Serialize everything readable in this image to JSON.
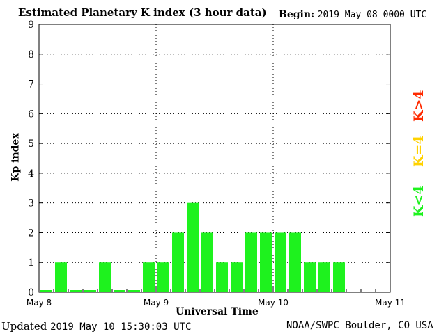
{
  "header": {
    "title": "Estimated Planetary K index (3 hour data)",
    "begin_label": "Begin:",
    "begin_value": "2019 May 08 0000 UTC"
  },
  "footer": {
    "updated_label": "Updated",
    "updated_value": "2019 May 10 15:30:03 UTC",
    "credit": "NOAA/SWPC Boulder, CO USA"
  },
  "legend": {
    "high": {
      "label": "K>4",
      "color": "#ff2a00"
    },
    "equal": {
      "label": "K=4",
      "color": "#ffd200"
    },
    "low": {
      "label": "K<4",
      "color": "#1ef21e"
    }
  },
  "chart_data": {
    "type": "bar",
    "xlabel": "Universal Time",
    "ylabel": "Kp index",
    "ylim": [
      0,
      9
    ],
    "yticks": [
      0,
      1,
      2,
      3,
      4,
      5,
      6,
      7,
      8,
      9
    ],
    "x_tick_labels": [
      "May 8",
      "May 9",
      "May 10",
      "May 11"
    ],
    "grid": true,
    "bars_per_day": 8,
    "days": 3,
    "bar_color": "#1ef21e",
    "values": [
      0,
      1,
      0,
      0,
      1,
      0,
      0,
      1,
      1,
      2,
      3,
      2,
      1,
      1,
      2,
      2,
      2,
      2,
      1,
      1,
      1
    ]
  }
}
